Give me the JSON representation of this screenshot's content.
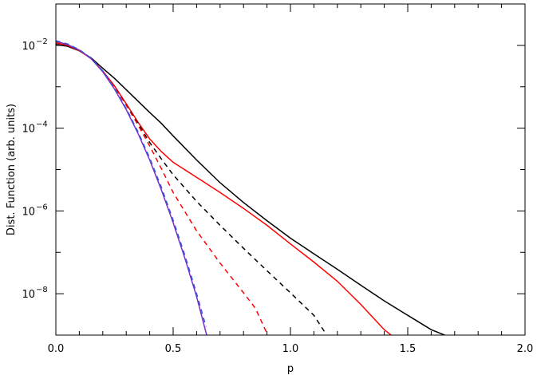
{
  "chart_data": {
    "type": "line",
    "title": "",
    "xlabel": "p",
    "ylabel": "Dist. Function (arb. units)",
    "xlim": [
      0.0,
      2.0
    ],
    "ylim": [
      1e-09,
      0.1
    ],
    "yscale": "log",
    "grid": false,
    "legend": "none",
    "x_ticks": [
      {
        "value": 0.0,
        "label": "0.0"
      },
      {
        "value": 0.5,
        "label": "0.5"
      },
      {
        "value": 1.0,
        "label": "1.0"
      },
      {
        "value": 1.5,
        "label": "1.5"
      },
      {
        "value": 2.0,
        "label": "2.0"
      }
    ],
    "y_ticks": [
      {
        "value": 0.01,
        "base": "10",
        "exp": "−2"
      },
      {
        "value": 0.0001,
        "base": "10",
        "exp": "−4"
      },
      {
        "value": 1e-06,
        "base": "10",
        "exp": "−6"
      },
      {
        "value": 1e-08,
        "base": "10",
        "exp": "−8"
      }
    ],
    "series": [
      {
        "color": "#000000",
        "dash": "solid",
        "x": [
          0.0,
          0.05,
          0.1,
          0.15,
          0.2,
          0.25,
          0.3,
          0.35,
          0.4,
          0.45,
          0.5,
          0.6,
          0.7,
          0.8,
          0.9,
          1.0,
          1.1,
          1.2,
          1.3,
          1.4,
          1.5,
          1.6,
          1.7,
          1.8,
          1.9,
          1.98
        ],
        "y": [
          0.0105,
          0.0095,
          0.0074,
          0.005,
          0.0028,
          0.0016,
          0.00085,
          0.00045,
          0.00024,
          0.00013,
          6.5e-05,
          1.7e-05,
          4.8e-06,
          1.6e-06,
          5.8e-07,
          2.2e-07,
          9.2e-08,
          3.9e-08,
          1.6e-08,
          6.7e-09,
          3e-09,
          1.35e-09,
          8e-10,
          6.5e-10,
          5.6e-10,
          5e-10
        ]
      },
      {
        "color": "#ff0000",
        "dash": "solid",
        "x": [
          0.0,
          0.05,
          0.1,
          0.15,
          0.2,
          0.25,
          0.3,
          0.35,
          0.4,
          0.45,
          0.5,
          0.6,
          0.7,
          0.8,
          0.9,
          1.0,
          1.1,
          1.2,
          1.3,
          1.4,
          1.47
        ],
        "y": [
          0.0115,
          0.01,
          0.0075,
          0.0048,
          0.0024,
          0.00105,
          0.00039,
          0.00014,
          5.5e-05,
          2.7e-05,
          1.5e-05,
          6.5e-06,
          2.8e-06,
          1.15e-06,
          4.5e-07,
          1.6e-07,
          5.8e-08,
          2e-08,
          5.5e-09,
          1.35e-09,
          6.5e-10
        ]
      },
      {
        "color": "#000000",
        "dash": "dashed",
        "x": [
          0.0,
          0.05,
          0.1,
          0.15,
          0.2,
          0.25,
          0.3,
          0.35,
          0.4,
          0.45,
          0.5,
          0.6,
          0.7,
          0.8,
          0.9,
          1.0,
          1.1,
          1.15
        ],
        "y": [
          0.0115,
          0.0101,
          0.0076,
          0.0048,
          0.0024,
          0.001,
          0.00037,
          0.00013,
          4.5e-05,
          1.8e-05,
          7.5e-06,
          1.7e-06,
          4.5e-07,
          1.25e-07,
          3.6e-08,
          1.05e-08,
          3e-09,
          1.1e-09
        ]
      },
      {
        "color": "#ff0000",
        "dash": "dashed",
        "x": [
          0.0,
          0.05,
          0.1,
          0.15,
          0.2,
          0.25,
          0.3,
          0.35,
          0.4,
          0.45,
          0.5,
          0.6,
          0.7,
          0.8,
          0.85,
          0.9
        ],
        "y": [
          0.0115,
          0.0101,
          0.0076,
          0.0048,
          0.0024,
          0.001,
          0.00036,
          0.00012,
          3.7e-05,
          1.05e-05,
          2.8e-06,
          3.3e-07,
          5.5e-08,
          1.05e-08,
          4.5e-09,
          1.1e-09
        ]
      },
      {
        "color": "#7d2ec8",
        "dash": "solid",
        "x": [
          0.0,
          0.05,
          0.1,
          0.15,
          0.2,
          0.25,
          0.3,
          0.35,
          0.4,
          0.45,
          0.5,
          0.55,
          0.6,
          0.65
        ],
        "y": [
          0.0125,
          0.0105,
          0.0077,
          0.0048,
          0.0023,
          0.00088,
          0.00028,
          7.5e-05,
          1.7e-05,
          3.2e-06,
          5.2e-07,
          7.2e-08,
          8.5e-09,
          7e-10
        ]
      },
      {
        "color": "#3355dd",
        "dash": "dashed",
        "x": [
          0.0,
          0.05,
          0.1,
          0.15,
          0.2,
          0.25,
          0.3,
          0.35,
          0.4,
          0.45,
          0.5,
          0.55,
          0.6,
          0.64
        ],
        "y": [
          0.013,
          0.0108,
          0.0079,
          0.0049,
          0.0024,
          0.00092,
          0.0003,
          8.2e-05,
          1.9e-05,
          3.7e-06,
          6e-07,
          8.5e-08,
          1e-08,
          1.6e-09
        ]
      }
    ]
  }
}
